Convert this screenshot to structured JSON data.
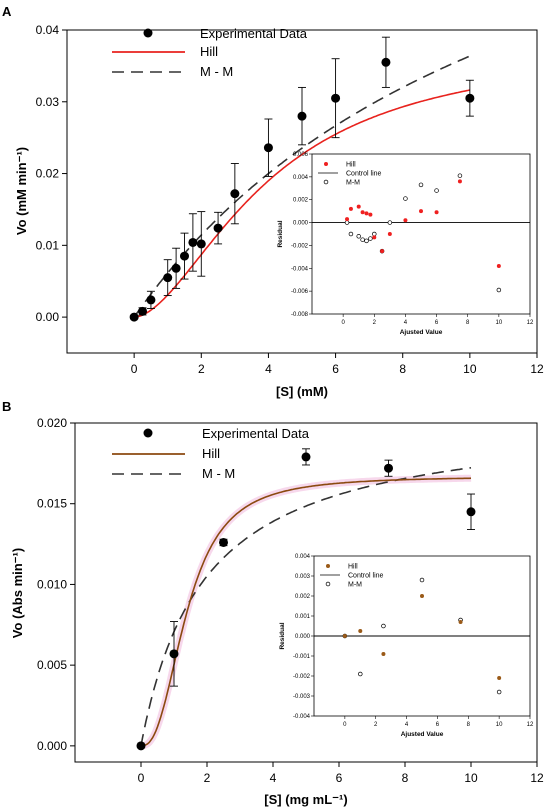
{
  "chart_data": [
    {
      "panel": "A",
      "type": "scatter",
      "xlabel": "[S] (mM)",
      "ylabel": "Vo (mM min⁻¹)",
      "xlim": [
        -2,
        12
      ],
      "ylim": [
        -0.005,
        0.04
      ],
      "xticks": [
        "0",
        "2",
        "4",
        "6",
        "8",
        "10",
        "12"
      ],
      "yticks": [
        "0.00",
        "0.01",
        "0.02",
        "0.03",
        "0.04"
      ],
      "legend": {
        "data": "Experimental Data",
        "hill": "Hill",
        "mm": "M - M"
      },
      "series": [
        {
          "name": "Experimental Data",
          "x": [
            0,
            0.25,
            0.5,
            1.0,
            1.25,
            1.5,
            1.75,
            2.0,
            2.5,
            3.0,
            4.0,
            5.0,
            6.0,
            7.5,
            10.0
          ],
          "y": [
            0.0,
            0.0008,
            0.0024,
            0.0055,
            0.0068,
            0.0085,
            0.0104,
            0.0102,
            0.0124,
            0.0172,
            0.0236,
            0.028,
            0.0305,
            0.0355,
            0.0305
          ],
          "err": [
            0,
            0.0005,
            0.0012,
            0.0025,
            0.0028,
            0.0032,
            0.004,
            0.0045,
            0.0022,
            0.0042,
            0.004,
            0.004,
            0.0055,
            0.0035,
            0.0025
          ]
        },
        {
          "name": "Hill",
          "model": "hill",
          "vmax": 0.038,
          "k": 4.0,
          "n": 1.75
        },
        {
          "name": "M - M",
          "model": "mm",
          "vmax": 0.08,
          "k": 12.0
        }
      ],
      "inset": {
        "xlabel": "Ajusted Value",
        "ylabel": "Residual",
        "xlim": [
          -2,
          12
        ],
        "ylim": [
          -0.008,
          0.006
        ],
        "xticks": [
          "0",
          "2",
          "4",
          "6",
          "8",
          "10",
          "12"
        ],
        "yticks": [
          "-0.008",
          "-0.006",
          "-0.004",
          "-0.002",
          "0.000",
          "0.002",
          "0.004",
          "0.006"
        ],
        "legend": {
          "hill": "Hill",
          "control": "Control line",
          "mm": "M-M"
        },
        "hill": {
          "x": [
            0.25,
            0.5,
            1.0,
            1.25,
            1.5,
            1.75,
            2.0,
            2.5,
            3.0,
            4.0,
            5.0,
            6.0,
            7.5,
            10.0
          ],
          "y": [
            0.0003,
            0.0012,
            0.0014,
            0.0009,
            0.0008,
            0.0007,
            -0.0013,
            -0.0025,
            -0.001,
            0.0002,
            0.001,
            0.0009,
            0.0036,
            -0.0038
          ]
        },
        "mm": {
          "x": [
            0.25,
            0.5,
            1.0,
            1.25,
            1.5,
            1.75,
            2.0,
            2.5,
            3.0,
            4.0,
            5.0,
            6.0,
            7.5,
            10.0
          ],
          "y": [
            0.0,
            -0.001,
            -0.0012,
            -0.0015,
            -0.0016,
            -0.0014,
            -0.001,
            -0.0025,
            0.0,
            0.0021,
            0.0033,
            0.0028,
            0.0041,
            -0.0059
          ]
        }
      }
    },
    {
      "panel": "B",
      "type": "scatter",
      "xlabel": "[S] (mg mL⁻¹)",
      "ylabel": "Vo (Abs min⁻¹)",
      "xlim": [
        -2,
        12
      ],
      "ylim": [
        -0.001,
        0.02
      ],
      "xticks": [
        "0",
        "2",
        "4",
        "6",
        "8",
        "10",
        "12"
      ],
      "yticks": [
        "0.000",
        "0.005",
        "0.010",
        "0.015",
        "0.020"
      ],
      "legend": {
        "data": "Experimental Data",
        "hill": "Hill",
        "mm": "M - M"
      },
      "series": [
        {
          "name": "Experimental Data",
          "x": [
            0,
            1.0,
            2.5,
            5.0,
            7.5,
            10.0
          ],
          "y": [
            0.0,
            0.0057,
            0.0126,
            0.0179,
            0.0172,
            0.0145
          ],
          "err": [
            0,
            0.002,
            0.0002,
            0.0005,
            0.0005,
            0.0011
          ]
        },
        {
          "name": "Hill",
          "model": "hill",
          "vmax": 0.0167,
          "k": 1.4,
          "n": 2.5
        },
        {
          "name": "M - M",
          "model": "mm",
          "vmax": 0.0205,
          "k": 1.9
        }
      ],
      "inset": {
        "xlabel": "Ajusted Value",
        "ylabel": "Residual",
        "xlim": [
          -2,
          12
        ],
        "ylim": [
          -0.004,
          0.004
        ],
        "xticks": [
          "0",
          "2",
          "4",
          "6",
          "8",
          "10",
          "12"
        ],
        "yticks": [
          "-0.004",
          "-0.003",
          "-0.002",
          "-0.001",
          "0.000",
          "0.001",
          "0.002",
          "0.003",
          "0.004"
        ],
        "legend": {
          "hill": "Hill",
          "control": "Control line",
          "mm": "M-M"
        },
        "hill": {
          "x": [
            0,
            1.0,
            2.5,
            5.0,
            7.5,
            10.0
          ],
          "y": [
            0.0,
            0.00025,
            -0.0009,
            0.002,
            0.0007,
            -0.0021
          ]
        },
        "mm": {
          "x": [
            0,
            1.0,
            2.5,
            5.0,
            7.5,
            10.0
          ],
          "y": [
            0.0,
            -0.0019,
            0.0005,
            0.0028,
            0.0008,
            -0.0028
          ]
        }
      }
    }
  ],
  "colors": {
    "hillA": "#e8231e",
    "hillB": "#8b4a10",
    "hillBGlow": "#f4c8e4",
    "mm": "#333333",
    "residualHillA": "#ef2020",
    "residualHillB": "#9a5a18"
  }
}
